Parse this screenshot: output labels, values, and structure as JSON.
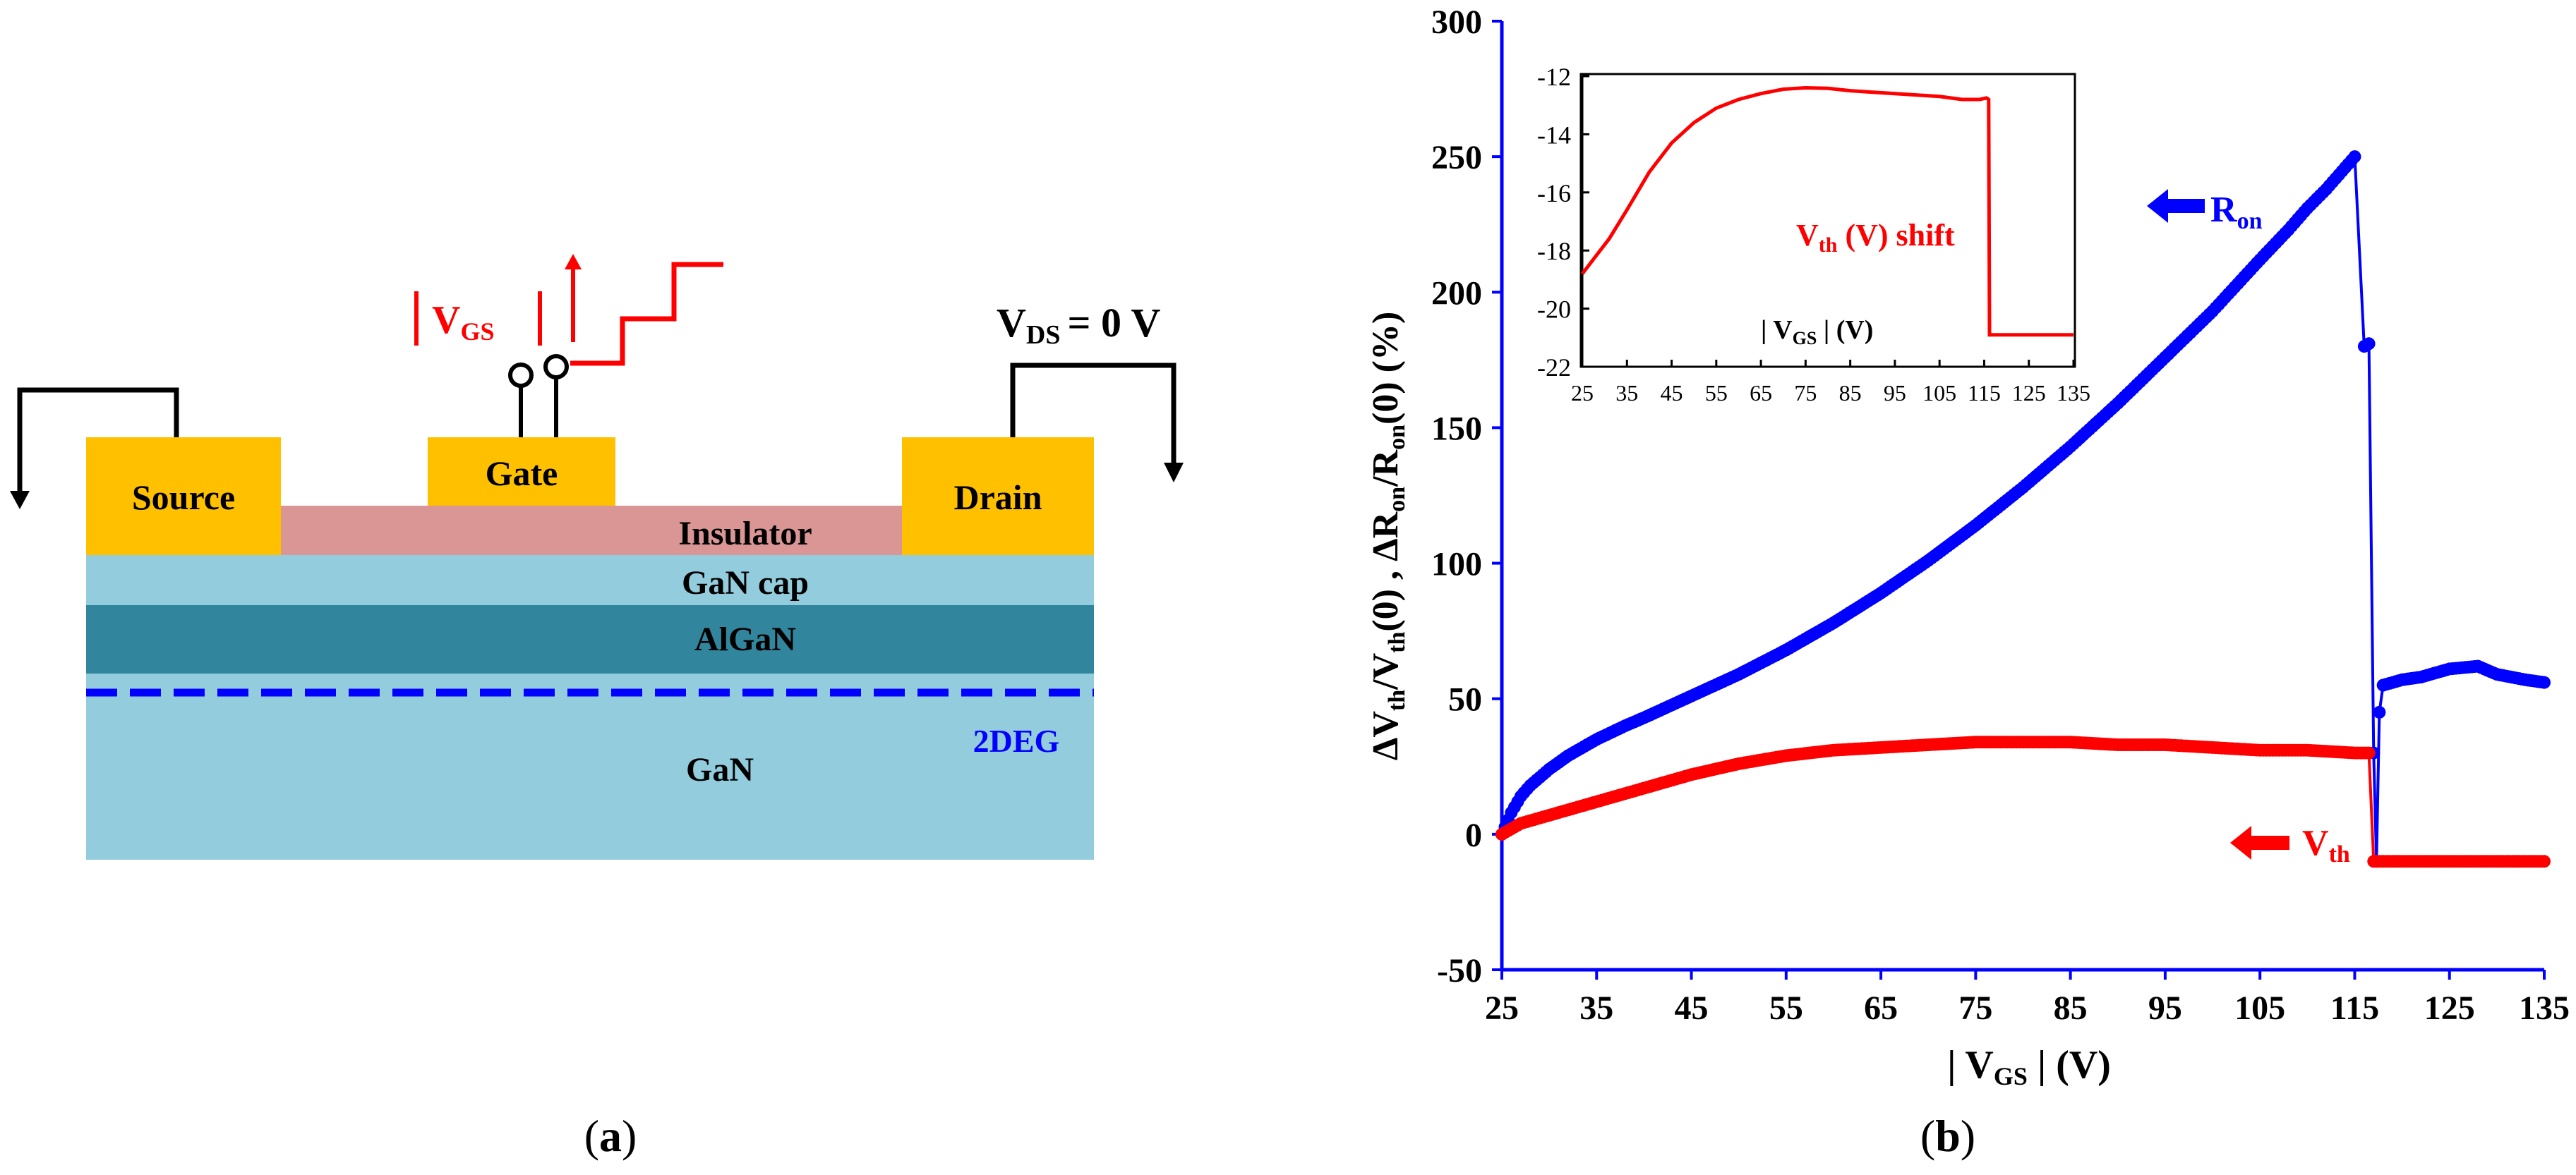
{
  "panel_a": {
    "caption": "a",
    "vgs_label": "V",
    "vgs_sub": "GS",
    "vds_label": "V",
    "vds_sub": "DS",
    "vds_value": "= 0 V",
    "source": "Source",
    "gate": "Gate",
    "drain": "Drain",
    "insulator": "Insulator",
    "gan_cap": "GaN cap",
    "algan": "AlGaN",
    "gan": "GaN",
    "twodeg": "2DEG",
    "colors": {
      "metal": "#FFC000",
      "insulator": "#D99694",
      "gan": "#93CDDD",
      "algan": "#31859C",
      "twodeg": "#0000FF",
      "red": "#FF0000"
    }
  },
  "panel_b": {
    "caption": "b"
  },
  "chart_data": [
    {
      "type": "scatter",
      "title": "",
      "xlabel": "| V_GS | (V)",
      "ylabel": "ΔV_th/V_th(0) , ΔR_on/R_on(0) (%)",
      "xlim": [
        25,
        135
      ],
      "ylim": [
        -50,
        300
      ],
      "xticks": [
        25,
        35,
        45,
        55,
        65,
        75,
        85,
        95,
        105,
        115,
        125,
        135
      ],
      "yticks": [
        -50,
        0,
        50,
        100,
        150,
        200,
        250,
        300
      ],
      "series": [
        {
          "name": "R_on",
          "color": "#0000FF",
          "x": [
            25,
            26,
            27,
            28,
            30,
            32,
            35,
            38,
            40,
            45,
            50,
            55,
            60,
            65,
            70,
            75,
            80,
            85,
            90,
            95,
            100,
            105,
            108,
            110,
            112,
            114,
            115,
            116,
            116.5,
            117,
            117.3,
            117.6,
            118,
            120,
            122,
            125,
            128,
            130,
            133,
            135
          ],
          "y": [
            0,
            8,
            14,
            18,
            24,
            29,
            35,
            40,
            43,
            51,
            59,
            68,
            78,
            89,
            101,
            114,
            128,
            143,
            159,
            176,
            193,
            212,
            223,
            231,
            238,
            246,
            250,
            180,
            181,
            30,
            -10,
            45,
            55,
            57,
            58,
            61,
            62,
            59,
            57,
            56
          ]
        },
        {
          "name": "V_th",
          "color": "#FF0000",
          "x": [
            25,
            27,
            30,
            35,
            40,
            45,
            50,
            55,
            60,
            65,
            70,
            75,
            80,
            85,
            90,
            95,
            100,
            105,
            110,
            115,
            116.5,
            117,
            120,
            125,
            130,
            135
          ],
          "y": [
            0,
            4,
            7,
            12,
            17,
            22,
            26,
            29,
            31,
            32,
            33,
            34,
            34,
            34,
            33,
            33,
            32,
            31,
            31,
            30,
            30,
            -10,
            -10,
            -10,
            -10,
            -10
          ]
        }
      ],
      "annotations": [
        {
          "text": "R",
          "sub": "on",
          "color": "#0000FF"
        },
        {
          "text": "V",
          "sub": "th",
          "color": "#FF0000"
        }
      ]
    },
    {
      "type": "line",
      "title": "V_th (V) shift",
      "xlabel": "| V_GS | (V)",
      "ylabel": "",
      "xlim": [
        25,
        135
      ],
      "ylim": [
        -22,
        -12
      ],
      "xticks": [
        25,
        35,
        45,
        55,
        65,
        75,
        85,
        95,
        105,
        115,
        125,
        135
      ],
      "yticks": [
        -22,
        -20,
        -18,
        -16,
        -14,
        -12
      ],
      "series": [
        {
          "name": "V_th shift",
          "color": "#FF0000",
          "x": [
            25,
            28,
            31,
            35,
            40,
            45,
            50,
            55,
            60,
            65,
            70,
            75,
            80,
            85,
            90,
            95,
            100,
            105,
            110,
            114,
            115.5,
            116,
            116.2,
            120,
            125,
            130,
            135
          ],
          "y": [
            -18.8,
            -18.2,
            -17.6,
            -16.6,
            -15.3,
            -14.3,
            -13.6,
            -13.1,
            -12.8,
            -12.6,
            -12.45,
            -12.4,
            -12.42,
            -12.5,
            -12.55,
            -12.6,
            -12.65,
            -12.7,
            -12.8,
            -12.8,
            -12.75,
            -12.8,
            -20.9,
            -20.9,
            -20.9,
            -20.9,
            -20.9
          ]
        }
      ],
      "label_main": "V",
      "label_sub": "th",
      "label_rest": " (V)  shift",
      "inset_xlabel_main": "V",
      "inset_xlabel_sub": "GS",
      "inset_xlabel_unit": "(V)"
    }
  ]
}
